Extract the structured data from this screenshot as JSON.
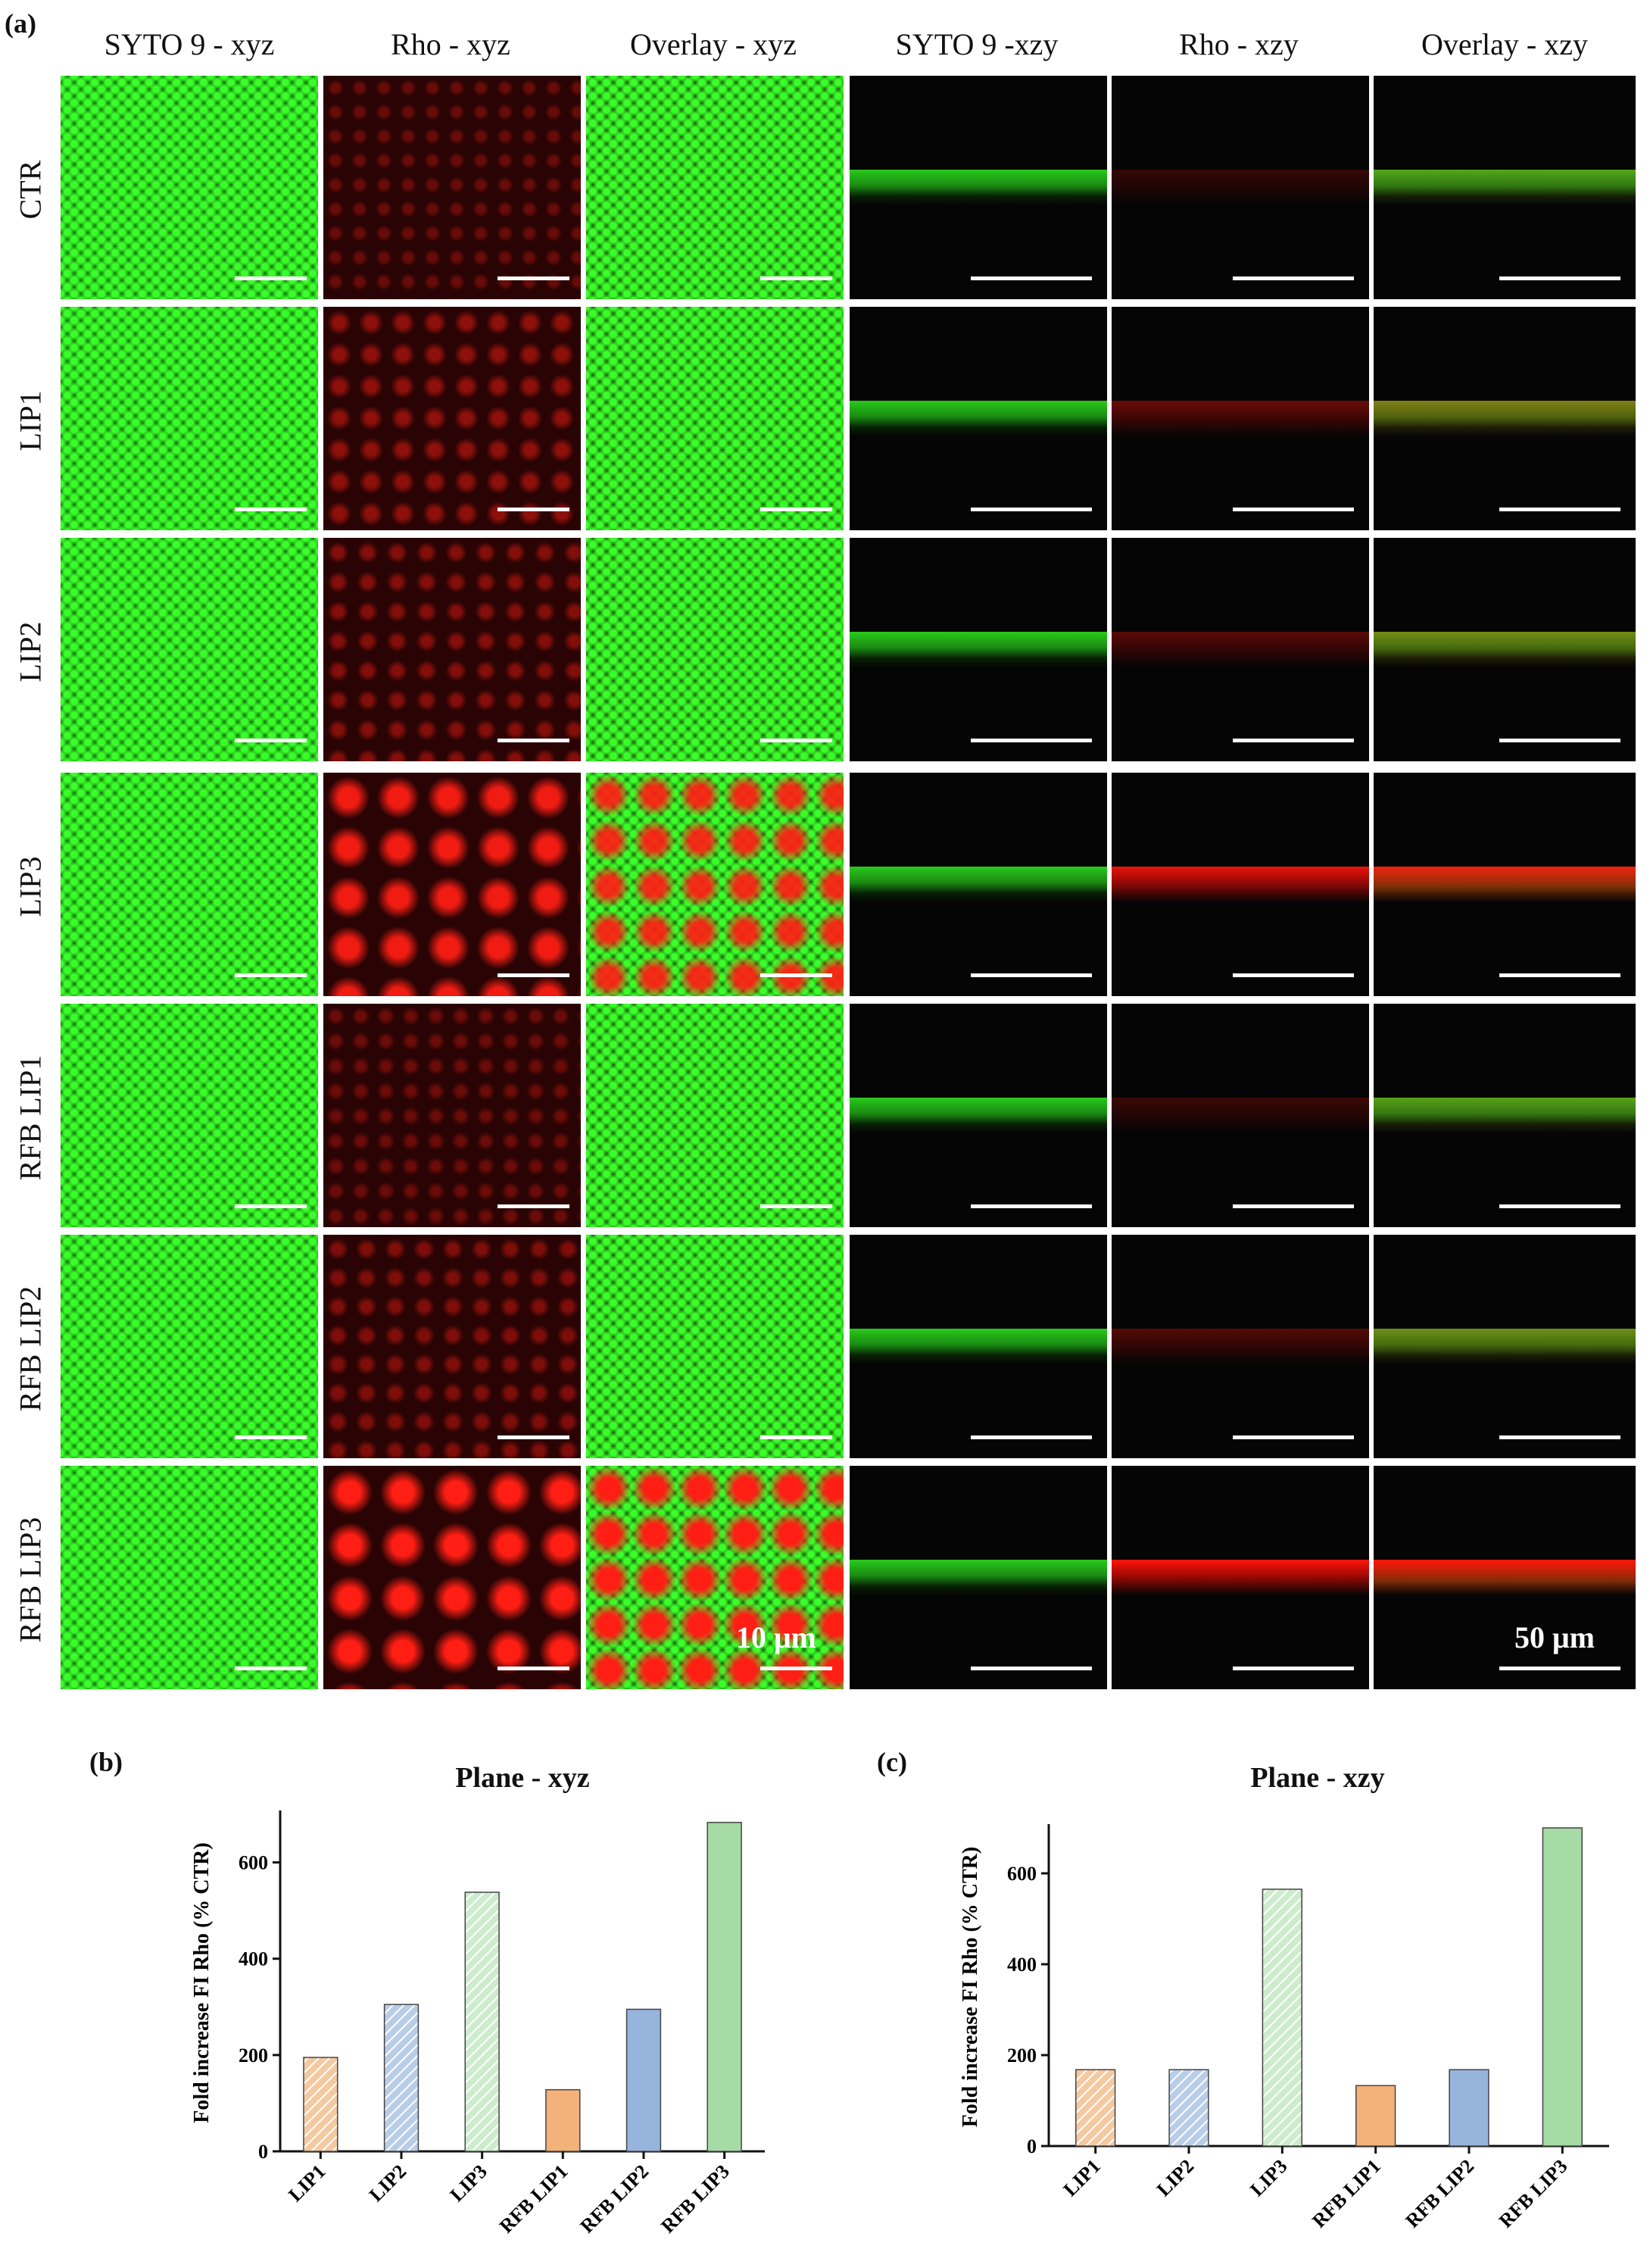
{
  "figure": {
    "panel_a_label": "(a)",
    "panel_b_label": "(b)",
    "panel_c_label": "(c)",
    "column_headers": [
      "SYTO 9 - xyz",
      "Rho - xyz",
      "Overlay - xyz",
      "SYTO 9 -xzy",
      "Rho - xzy",
      "Overlay - xzy"
    ],
    "row_labels": [
      "CTR",
      "LIP1",
      "LIP2",
      "LIP3",
      "RFB LIP1",
      "RFB LIP2",
      "RFB LIP3"
    ],
    "scale_labels": {
      "xyz": "10 μm",
      "xzy": "50 μm"
    },
    "rho_intensity": [
      0.05,
      0.3,
      0.22,
      0.9,
      0.08,
      0.2,
      1.0
    ]
  },
  "chart_data": [
    {
      "type": "bar",
      "title": "Plane - xyz",
      "ylabel": "Fold increase FI Rho (% CTR)",
      "xlabel": "",
      "categories": [
        "LIP1",
        "LIP2",
        "LIP3",
        "RFB LIP1",
        "RFB LIP2",
        "RFB LIP3"
      ],
      "values": [
        195,
        305,
        538,
        128,
        295,
        683
      ],
      "ylim": [
        0,
        700
      ],
      "yticks": [
        0,
        200,
        400,
        600
      ],
      "bar_colors": [
        "#f5c9a0",
        "#b8cde8",
        "#cdeccd",
        "#f2b27a",
        "#97b4dc",
        "#a6dba6"
      ],
      "hatched": [
        true,
        true,
        true,
        false,
        false,
        false
      ],
      "grid": false
    },
    {
      "type": "bar",
      "title": "Plane - xzy",
      "ylabel": "Fold increase FI Rho (% CTR)",
      "xlabel": "",
      "categories": [
        "LIP1",
        "LIP2",
        "LIP3",
        "RFB  LIP1",
        "RFB LIP2",
        "RFB LIP3"
      ],
      "values": [
        168,
        168,
        565,
        133,
        168,
        700
      ],
      "ylim": [
        0,
        700
      ],
      "yticks": [
        0,
        200,
        400,
        600
      ],
      "bar_colors": [
        "#f5c9a0",
        "#b8cde8",
        "#cdeccd",
        "#f2b27a",
        "#97b4dc",
        "#a6dba6"
      ],
      "hatched": [
        true,
        true,
        true,
        false,
        false,
        false
      ],
      "grid": false
    }
  ]
}
